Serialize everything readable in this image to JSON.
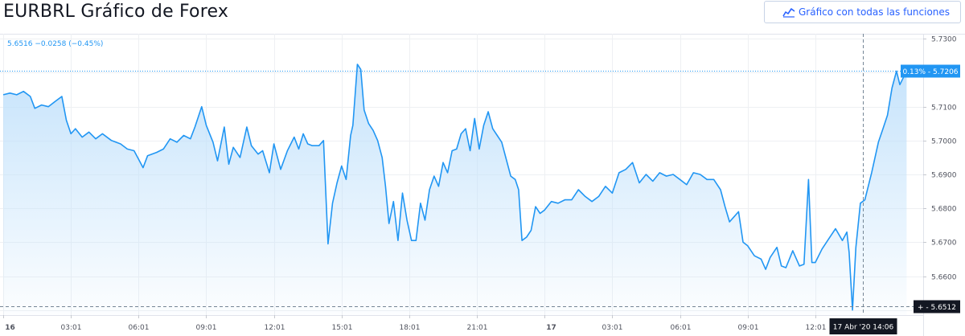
{
  "title": "EURBRL Gráfico de Forex",
  "full_chart_button": {
    "label": "Gráfico con todas las funciones",
    "icon": "chart-line-icon"
  },
  "readout": "5.6516  −0.0258 (−0.45%)",
  "colors": {
    "line": "#2196f3",
    "fill_top": "#bfe0fb",
    "accent": "#2962ff",
    "grid": "#eef0f3",
    "axis_text": "#50535e"
  },
  "chart_data": {
    "type": "area",
    "title": "",
    "xlabel": "",
    "ylabel": "",
    "ylim": [
      5.6485,
      5.7315
    ],
    "y_ticks": [
      "5.7300",
      "5.7200",
      "5.7100",
      "5.7000",
      "5.6900",
      "5.6800",
      "5.6700",
      "5.6600",
      "5.6500"
    ],
    "x_ticks": [
      "16",
      "03:01",
      "06:01",
      "09:01",
      "12:01",
      "15:01",
      "18:01",
      "21:01",
      "17",
      "03:01",
      "06:01",
      "09:01",
      "12:01"
    ],
    "x_tick_positions_hours": [
      0,
      3,
      6,
      9,
      12,
      15,
      18,
      21,
      24,
      27,
      30,
      33,
      36
    ],
    "grid": true,
    "current_price_label": "0.13% - 5.7206",
    "current_price": 5.7206,
    "reference_price_label": "+ - 5.6512",
    "reference_price": 5.6512,
    "crosshair_label": "17 Abr '20   14:06",
    "crosshair_hour": 38.1,
    "series": [
      {
        "values": [
          [
            0.0,
            5.7135
          ],
          [
            0.3,
            5.714
          ],
          [
            0.6,
            5.7135
          ],
          [
            0.9,
            5.7145
          ],
          [
            1.2,
            5.713
          ],
          [
            1.4,
            5.7095
          ],
          [
            1.7,
            5.7105
          ],
          [
            2.0,
            5.71
          ],
          [
            2.3,
            5.7115
          ],
          [
            2.6,
            5.713
          ],
          [
            2.8,
            5.706
          ],
          [
            3.0,
            5.702
          ],
          [
            3.2,
            5.7035
          ],
          [
            3.5,
            5.701
          ],
          [
            3.8,
            5.7025
          ],
          [
            4.1,
            5.7005
          ],
          [
            4.4,
            5.702
          ],
          [
            4.8,
            5.7
          ],
          [
            5.2,
            5.699
          ],
          [
            5.5,
            5.6975
          ],
          [
            5.8,
            5.697
          ],
          [
            6.0,
            5.6945
          ],
          [
            6.2,
            5.692
          ],
          [
            6.4,
            5.6955
          ],
          [
            6.8,
            5.6965
          ],
          [
            7.1,
            5.6975
          ],
          [
            7.4,
            5.7005
          ],
          [
            7.7,
            5.6995
          ],
          [
            8.0,
            5.7015
          ],
          [
            8.3,
            5.7005
          ],
          [
            8.5,
            5.704
          ],
          [
            8.8,
            5.71
          ],
          [
            9.0,
            5.7045
          ],
          [
            9.3,
            5.6995
          ],
          [
            9.5,
            5.694
          ],
          [
            9.8,
            5.704
          ],
          [
            10.0,
            5.693
          ],
          [
            10.2,
            5.698
          ],
          [
            10.5,
            5.695
          ],
          [
            10.8,
            5.704
          ],
          [
            11.0,
            5.6985
          ],
          [
            11.3,
            5.696
          ],
          [
            11.5,
            5.697
          ],
          [
            11.8,
            5.6905
          ],
          [
            12.0,
            5.699
          ],
          [
            12.3,
            5.6915
          ],
          [
            12.6,
            5.697
          ],
          [
            12.9,
            5.701
          ],
          [
            13.1,
            5.6975
          ],
          [
            13.3,
            5.702
          ],
          [
            13.5,
            5.699
          ],
          [
            13.7,
            5.6985
          ],
          [
            14.0,
            5.6985
          ],
          [
            14.2,
            5.7
          ],
          [
            14.4,
            5.6695
          ],
          [
            14.6,
            5.6815
          ],
          [
            14.8,
            5.6875
          ],
          [
            15.0,
            5.6925
          ],
          [
            15.2,
            5.6885
          ],
          [
            15.4,
            5.7015
          ],
          [
            15.5,
            5.7045
          ],
          [
            15.7,
            5.7225
          ],
          [
            15.85,
            5.721
          ],
          [
            16.0,
            5.709
          ],
          [
            16.2,
            5.705
          ],
          [
            16.4,
            5.703
          ],
          [
            16.6,
            5.7
          ],
          [
            16.8,
            5.695
          ],
          [
            16.95,
            5.6865
          ],
          [
            17.1,
            5.6755
          ],
          [
            17.3,
            5.682
          ],
          [
            17.5,
            5.6705
          ],
          [
            17.7,
            5.6845
          ],
          [
            17.9,
            5.6765
          ],
          [
            18.1,
            5.6705
          ],
          [
            18.3,
            5.6705
          ],
          [
            18.5,
            5.6815
          ],
          [
            18.7,
            5.6765
          ],
          [
            18.9,
            5.6855
          ],
          [
            19.1,
            5.6895
          ],
          [
            19.3,
            5.6865
          ],
          [
            19.5,
            5.6935
          ],
          [
            19.7,
            5.6905
          ],
          [
            19.9,
            5.697
          ],
          [
            20.1,
            5.6975
          ],
          [
            20.3,
            5.702
          ],
          [
            20.5,
            5.7035
          ],
          [
            20.7,
            5.697
          ],
          [
            20.9,
            5.7065
          ],
          [
            21.1,
            5.6975
          ],
          [
            21.3,
            5.7045
          ],
          [
            21.5,
            5.7085
          ],
          [
            21.7,
            5.7035
          ],
          [
            21.9,
            5.7015
          ],
          [
            22.1,
            5.6995
          ],
          [
            22.3,
            5.6945
          ],
          [
            22.5,
            5.6895
          ],
          [
            22.7,
            5.6885
          ],
          [
            22.85,
            5.6855
          ],
          [
            23.0,
            5.6705
          ],
          [
            23.2,
            5.6715
          ],
          [
            23.4,
            5.6735
          ],
          [
            23.6,
            5.6805
          ],
          [
            23.8,
            5.6785
          ],
          [
            24.0,
            5.6795
          ],
          [
            24.3,
            5.682
          ],
          [
            24.6,
            5.6815
          ],
          [
            24.9,
            5.6825
          ],
          [
            25.2,
            5.6825
          ],
          [
            25.5,
            5.6855
          ],
          [
            25.8,
            5.6835
          ],
          [
            26.1,
            5.682
          ],
          [
            26.4,
            5.6835
          ],
          [
            26.7,
            5.6865
          ],
          [
            27.0,
            5.6845
          ],
          [
            27.3,
            5.6905
          ],
          [
            27.6,
            5.6915
          ],
          [
            27.9,
            5.6935
          ],
          [
            28.2,
            5.6875
          ],
          [
            28.5,
            5.69
          ],
          [
            28.8,
            5.688
          ],
          [
            29.1,
            5.6905
          ],
          [
            29.4,
            5.6895
          ],
          [
            29.7,
            5.69
          ],
          [
            30.0,
            5.6885
          ],
          [
            30.3,
            5.687
          ],
          [
            30.6,
            5.6905
          ],
          [
            30.9,
            5.69
          ],
          [
            31.2,
            5.6885
          ],
          [
            31.5,
            5.6885
          ],
          [
            31.8,
            5.6855
          ],
          [
            32.0,
            5.6805
          ],
          [
            32.2,
            5.676
          ],
          [
            32.4,
            5.6775
          ],
          [
            32.6,
            5.679
          ],
          [
            32.8,
            5.67
          ],
          [
            33.0,
            5.669
          ],
          [
            33.3,
            5.666
          ],
          [
            33.6,
            5.665
          ],
          [
            33.8,
            5.662
          ],
          [
            34.0,
            5.6655
          ],
          [
            34.3,
            5.6685
          ],
          [
            34.5,
            5.663
          ],
          [
            34.7,
            5.6625
          ],
          [
            35.0,
            5.6675
          ],
          [
            35.3,
            5.663
          ],
          [
            35.5,
            5.6635
          ],
          [
            35.7,
            5.6885
          ],
          [
            35.85,
            5.664
          ],
          [
            36.0,
            5.664
          ],
          [
            36.3,
            5.668
          ],
          [
            36.6,
            5.671
          ],
          [
            36.9,
            5.674
          ],
          [
            37.2,
            5.6705
          ],
          [
            37.4,
            5.673
          ],
          [
            37.5,
            5.667
          ],
          [
            37.65,
            5.65
          ],
          [
            37.8,
            5.6685
          ],
          [
            38.0,
            5.6815
          ],
          [
            38.2,
            5.6825
          ],
          [
            38.5,
            5.6905
          ],
          [
            38.8,
            5.6995
          ],
          [
            39.0,
            5.7035
          ],
          [
            39.2,
            5.7075
          ],
          [
            39.4,
            5.7155
          ],
          [
            39.6,
            5.7205
          ],
          [
            39.75,
            5.7165
          ],
          [
            39.9,
            5.7185
          ],
          [
            40.05,
            5.7206
          ]
        ]
      }
    ]
  }
}
